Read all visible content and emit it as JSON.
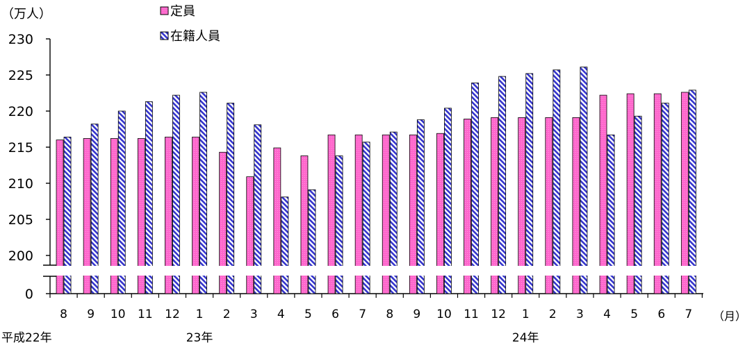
{
  "chart_data": {
    "type": "bar",
    "unit_label": "（万人）",
    "month_unit_label": "（月）",
    "legend": {
      "position": "top-left"
    },
    "categories": [
      "8",
      "9",
      "10",
      "11",
      "12",
      "1",
      "2",
      "3",
      "4",
      "5",
      "6",
      "7",
      "8",
      "9",
      "10",
      "11",
      "12",
      "1",
      "2",
      "3",
      "4",
      "5",
      "6",
      "7"
    ],
    "year_labels": [
      {
        "label": "平成22年",
        "category_index": 0
      },
      {
        "label": "23年",
        "category_index": 5
      },
      {
        "label": "24年",
        "category_index": 17
      }
    ],
    "y_ticks": [
      "0",
      "200",
      "205",
      "210",
      "215",
      "220",
      "225",
      "230"
    ],
    "ylim": [
      200,
      230
    ],
    "axis_break": true,
    "series": [
      {
        "name": "定員",
        "pattern": "solid",
        "color": "#ff66cc",
        "values": [
          216.0,
          216.2,
          216.2,
          216.2,
          216.4,
          216.4,
          214.3,
          210.9,
          214.9,
          213.8,
          216.7,
          216.7,
          216.7,
          216.7,
          216.9,
          218.9,
          219.1,
          219.1,
          219.1,
          219.1,
          222.2,
          222.4,
          222.4,
          222.6
        ]
      },
      {
        "name": "在籍人員",
        "pattern": "hatched",
        "color": "#3333cc",
        "values": [
          216.4,
          218.2,
          220.0,
          221.3,
          222.2,
          222.6,
          221.1,
          218.1,
          208.1,
          209.1,
          213.8,
          215.7,
          217.1,
          218.8,
          220.4,
          223.9,
          224.8,
          225.2,
          225.7,
          226.1,
          216.7,
          219.3,
          221.1,
          222.9
        ]
      }
    ]
  }
}
